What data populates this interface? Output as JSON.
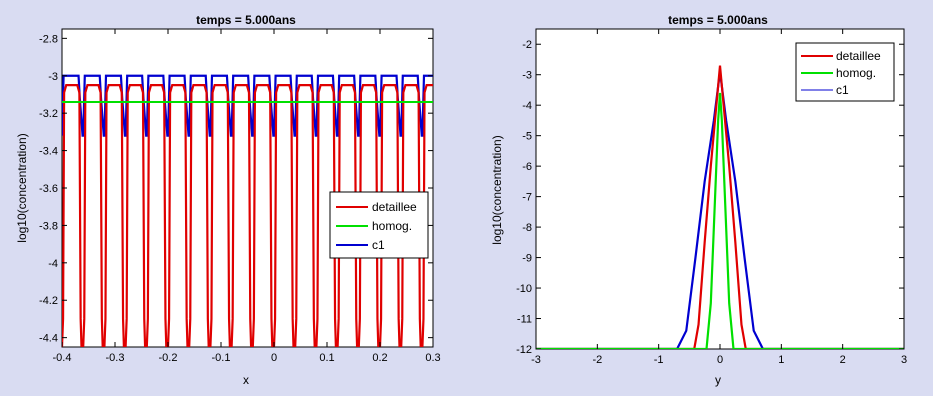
{
  "window": {
    "background": "#d9dcf2"
  },
  "chart_data": [
    {
      "type": "line",
      "title": "temps = 5.000ans",
      "xlabel": "x",
      "ylabel": "log10(concentration)",
      "xlim": [
        -0.4,
        0.3
      ],
      "ylim": [
        -4.45,
        -2.75
      ],
      "xticks": [
        "-0.4",
        "-0.3",
        "-0.2",
        "-0.1",
        "0",
        "0.1",
        "0.2",
        "0.3"
      ],
      "yticks": [
        "-2.8",
        "-3",
        "-3.2",
        "-3.4",
        "-3.6",
        "-3.8",
        "-4",
        "-4.2",
        "-4.4"
      ],
      "legend_position": "right",
      "periodic_pattern": {
        "period": 0.04,
        "count": 18
      },
      "series": [
        {
          "name": "detaillee",
          "color": "#e00000",
          "description_values": {
            "plateau": -3.05,
            "shoulder": -3.09,
            "trough": -4.45,
            "inner_step": -4.3
          }
        },
        {
          "name": "homog.",
          "color": "#00e000",
          "description_values": {
            "constant": -3.14
          }
        },
        {
          "name": "c1",
          "color": "#0000d0",
          "description_values": {
            "plateau": -3.0,
            "shoulder": -3.12,
            "trough": -3.32
          }
        }
      ]
    },
    {
      "type": "line",
      "title": "temps = 5.000ans",
      "xlabel": "y",
      "ylabel": "log10(concentration)",
      "xlim": [
        -3,
        3
      ],
      "ylim": [
        -12,
        -1.5
      ],
      "xticks": [
        "-3",
        "-2",
        "-1",
        "0",
        "1",
        "2",
        "3"
      ],
      "yticks": [
        "-2",
        "-3",
        "-4",
        "-5",
        "-6",
        "-7",
        "-8",
        "-9",
        "-10",
        "-11",
        "-12"
      ],
      "legend_position": "top-right",
      "series": [
        {
          "name": "detaillee",
          "color": "#e00000",
          "x": [
            -3,
            -0.42,
            -0.35,
            -0.25,
            -0.15,
            -0.05,
            0,
            0.05,
            0.15,
            0.25,
            0.35,
            0.42,
            3
          ],
          "y": [
            -12,
            -12,
            -11.2,
            -8.5,
            -6,
            -3.8,
            -2.7,
            -3.8,
            -6,
            -8.5,
            -11.2,
            -12,
            -12
          ]
        },
        {
          "name": "homog.",
          "color": "#00e000",
          "x": [
            -3,
            -0.22,
            -0.15,
            -0.08,
            -0.03,
            0,
            0.03,
            0.08,
            0.15,
            0.22,
            3
          ],
          "y": [
            -12,
            -12,
            -10.5,
            -7,
            -4.5,
            -3.6,
            -4.5,
            -7,
            -10.5,
            -12,
            -12
          ]
        },
        {
          "name": "c1",
          "color": "#0000d0",
          "x": [
            -3,
            -0.7,
            -0.55,
            -0.4,
            -0.25,
            -0.1,
            0,
            0.1,
            0.25,
            0.4,
            0.55,
            0.7,
            3
          ],
          "y": [
            -12,
            -12,
            -11.4,
            -9,
            -6.5,
            -4.5,
            -2.9,
            -4.5,
            -6.5,
            -9,
            -11.4,
            -12,
            -12
          ]
        }
      ]
    }
  ]
}
